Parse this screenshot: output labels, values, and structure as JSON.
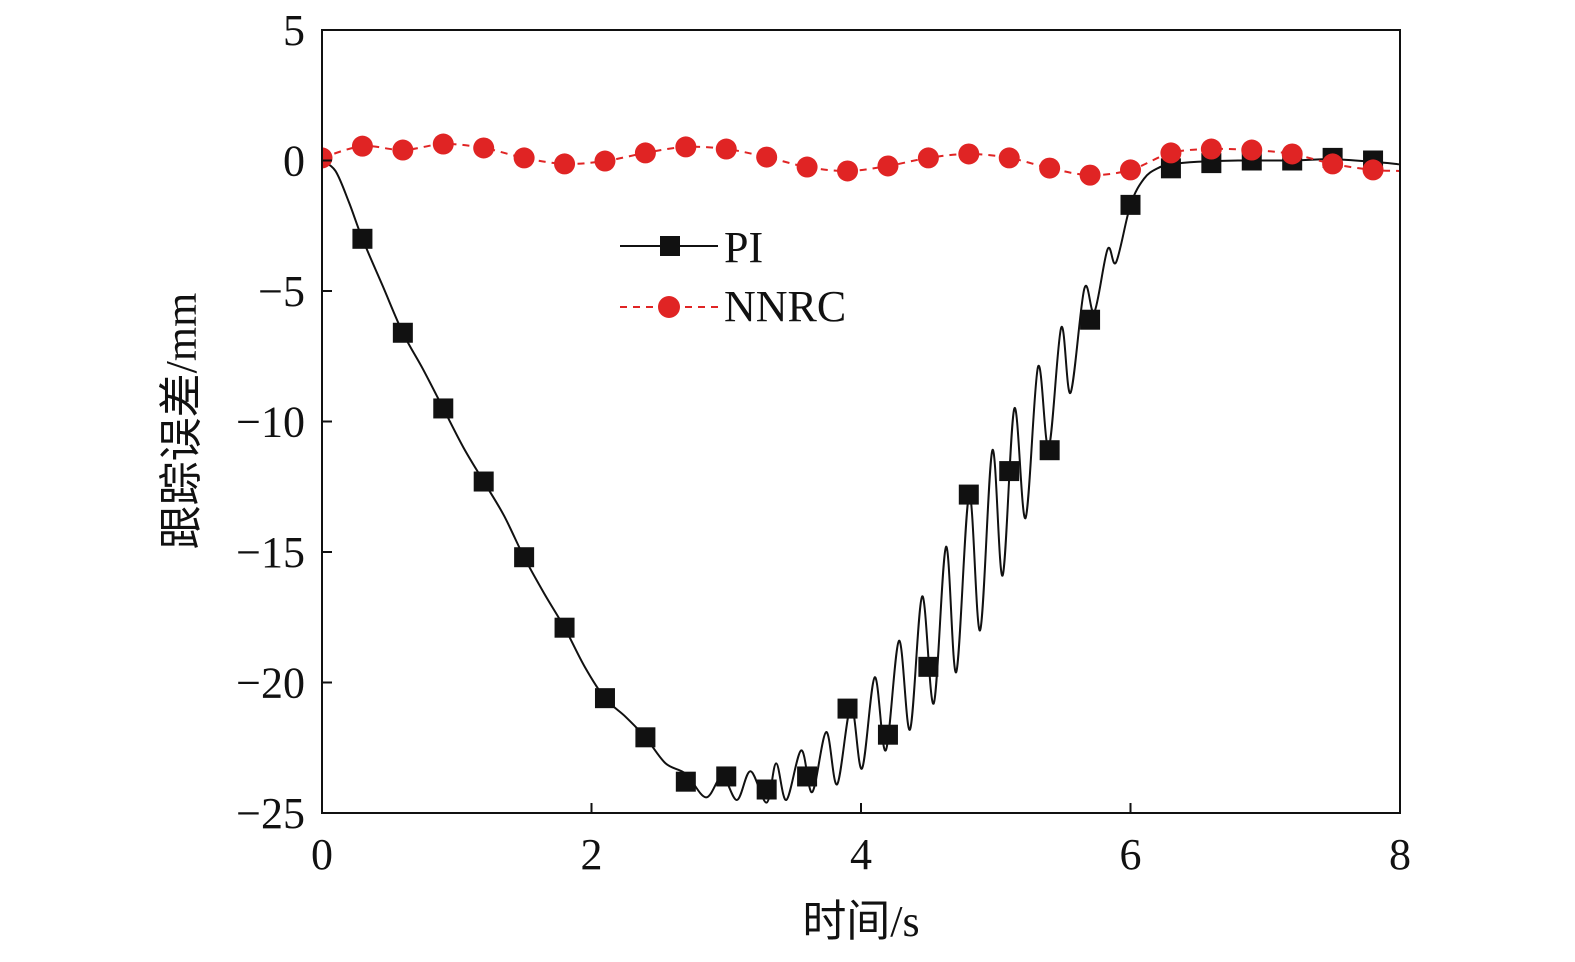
{
  "chart_data": {
    "type": "line",
    "title": "",
    "xlabel": "时间/s",
    "ylabel": "跟踪误差/mm",
    "xlim": [
      0,
      8
    ],
    "ylim": [
      -25,
      5
    ],
    "xticks": [
      "0",
      "2",
      "4",
      "6",
      "8"
    ],
    "yticks": [
      "5",
      "0",
      "−5",
      "−10",
      "−15",
      "−20",
      "−25"
    ],
    "grid": false,
    "legend_position": "upper-center",
    "series": [
      {
        "name": "PI",
        "color": "#111111",
        "marker": "square",
        "line_style": "solid",
        "marker_x": [
          0.3,
          0.6,
          0.9,
          1.2,
          1.5,
          1.8,
          2.1,
          2.4,
          2.7,
          3.0,
          3.3,
          3.6,
          3.9,
          4.2,
          4.5,
          4.8,
          5.1,
          5.4,
          5.7,
          6.0,
          6.3,
          6.6,
          6.9,
          7.2,
          7.5,
          7.8
        ],
        "marker_y": [
          -3.0,
          -6.6,
          -9.5,
          -12.3,
          -15.2,
          -17.9,
          -20.6,
          -22.1,
          -23.8,
          -23.6,
          -24.1,
          -23.6,
          -21.0,
          -22.0,
          -19.4,
          -12.8,
          -11.9,
          -11.1,
          -6.1,
          -1.7,
          -0.3,
          -0.1,
          0.0,
          0.0,
          0.1,
          0.0
        ],
        "curve_x": [
          0,
          0.1,
          0.2,
          0.3,
          0.45,
          0.6,
          0.75,
          0.9,
          1.05,
          1.2,
          1.35,
          1.5,
          1.65,
          1.8,
          1.95,
          2.1,
          2.25,
          2.4,
          2.55,
          2.7,
          2.85,
          2.97,
          3.08,
          3.18,
          3.3,
          3.37,
          3.446,
          3.557,
          3.638,
          3.742,
          3.823,
          3.926,
          4.007,
          4.102,
          4.184,
          4.282,
          4.364,
          4.454,
          4.54,
          4.631,
          4.707,
          4.803,
          4.884,
          4.975,
          5.051,
          5.138,
          5.221,
          5.314,
          5.393,
          5.486,
          5.555,
          5.658,
          5.732,
          5.83,
          5.893,
          6.0,
          6.1,
          6.2,
          6.3,
          6.5,
          6.8,
          7.2,
          7.5,
          7.8,
          8.0
        ],
        "curve_y": [
          0,
          -0.4,
          -1.6,
          -3.0,
          -4.8,
          -6.6,
          -8.0,
          -9.5,
          -11.0,
          -12.3,
          -13.6,
          -15.2,
          -16.6,
          -17.9,
          -19.4,
          -20.6,
          -21.3,
          -22.1,
          -23.1,
          -23.5,
          -24.4,
          -23.6,
          -24.5,
          -23.4,
          -24.6,
          -23.1,
          -24.5,
          -22.6,
          -24.2,
          -21.9,
          -23.9,
          -20.9,
          -23.3,
          -19.8,
          -22.6,
          -18.4,
          -21.8,
          -16.7,
          -20.8,
          -14.8,
          -19.6,
          -12.8,
          -18.0,
          -11.1,
          -15.9,
          -9.5,
          -13.7,
          -7.9,
          -11.0,
          -6.4,
          -8.9,
          -4.9,
          -5.8,
          -3.4,
          -3.9,
          -1.7,
          -0.7,
          -0.3,
          -0.15,
          -0.05,
          0.0,
          0.0,
          0.05,
          -0.05,
          -0.15
        ]
      },
      {
        "name": "NNRC",
        "color": "#e02424",
        "marker": "circle",
        "line_style": "dashed",
        "marker_x": [
          0,
          0.3,
          0.6,
          0.9,
          1.2,
          1.5,
          1.8,
          2.1,
          2.4,
          2.7,
          3.0,
          3.3,
          3.6,
          3.9,
          4.2,
          4.5,
          4.8,
          5.1,
          5.4,
          5.7,
          6.0,
          6.3,
          6.6,
          6.9,
          7.2,
          7.5,
          7.8
        ],
        "marker_y": [
          0.1,
          0.55,
          0.4,
          0.63,
          0.48,
          0.1,
          -0.13,
          -0.02,
          0.29,
          0.52,
          0.44,
          0.13,
          -0.25,
          -0.4,
          -0.21,
          0.1,
          0.25,
          0.1,
          -0.29,
          -0.56,
          -0.36,
          0.29,
          0.44,
          0.4,
          0.25,
          -0.13,
          -0.36
        ],
        "curve_x": [
          0,
          0.3,
          0.6,
          0.9,
          1.2,
          1.5,
          1.8,
          2.1,
          2.4,
          2.7,
          3.0,
          3.3,
          3.6,
          3.9,
          4.2,
          4.5,
          4.8,
          5.1,
          5.4,
          5.7,
          6.0,
          6.3,
          6.6,
          6.9,
          7.2,
          7.5,
          7.8,
          8.0
        ],
        "curve_y": [
          0.1,
          0.55,
          0.4,
          0.63,
          0.48,
          0.1,
          -0.13,
          -0.02,
          0.29,
          0.52,
          0.44,
          0.13,
          -0.25,
          -0.4,
          -0.21,
          0.1,
          0.25,
          0.1,
          -0.29,
          -0.56,
          -0.36,
          0.29,
          0.44,
          0.4,
          0.25,
          -0.13,
          -0.36,
          -0.4
        ]
      }
    ]
  }
}
